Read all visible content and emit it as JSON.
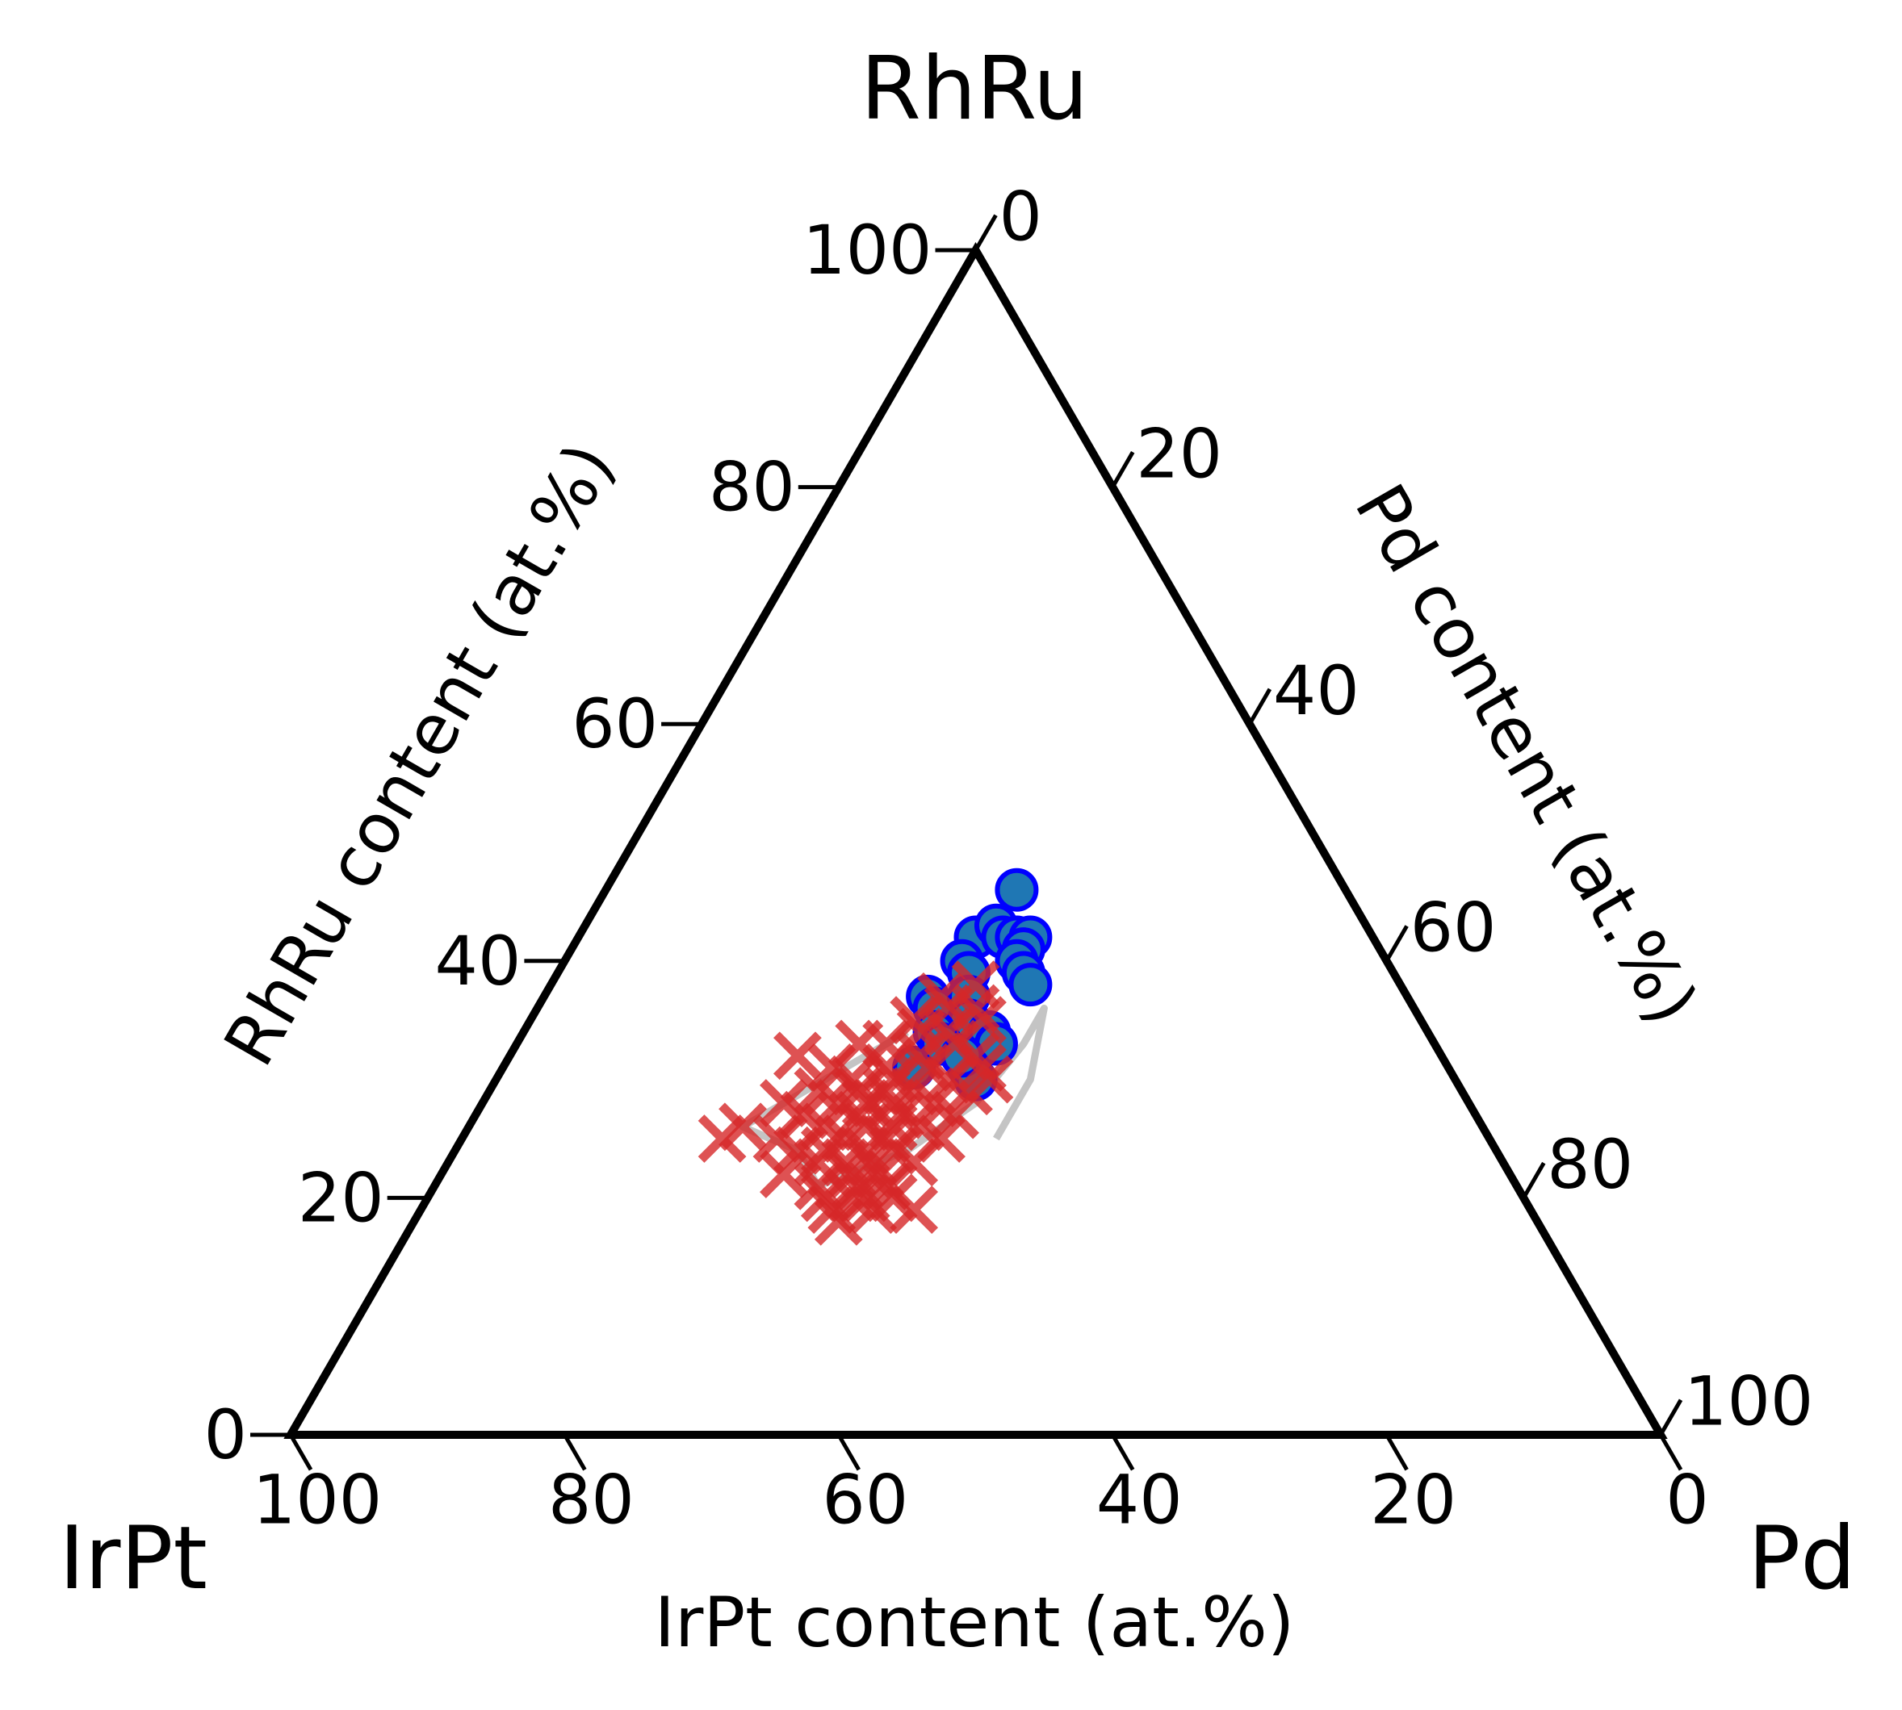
{
  "chart_data": {
    "type": "scatter",
    "subtype": "ternary",
    "corners": {
      "top": "RhRu",
      "left": "IrPt",
      "right": "Pd"
    },
    "axes": {
      "rhru": {
        "label": "RhRu content (at.%)",
        "side": "left",
        "ticks": [
          "0",
          "20",
          "40",
          "60",
          "80",
          "100"
        ]
      },
      "pd": {
        "label": "Pd content (at.%)",
        "side": "right",
        "ticks": [
          "0",
          "20",
          "40",
          "60",
          "80",
          "100"
        ]
      },
      "irpt": {
        "label": "IrPt content (at.%)",
        "side": "bottom",
        "ticks": [
          "100",
          "80",
          "60",
          "40",
          "20",
          "0"
        ]
      }
    },
    "range": [
      0,
      100
    ],
    "grid": false,
    "legend": "none",
    "colors": {
      "circle_fill": "#1f77b4",
      "circle_edge": "#0000ff",
      "cross": "#d62728",
      "trace": "#b0b0b0",
      "frame": "#000000"
    },
    "series": [
      {
        "marker": "circle",
        "points": [
          {
            "rhru": 46,
            "pd": 30
          },
          {
            "rhru": 42,
            "pd": 29
          },
          {
            "rhru": 43,
            "pd": 30
          },
          {
            "rhru": 42,
            "pd": 31
          },
          {
            "rhru": 42,
            "pd": 32
          },
          {
            "rhru": 42,
            "pd": 33
          },
          {
            "rhru": 41,
            "pd": 33
          },
          {
            "rhru": 40,
            "pd": 33
          },
          {
            "rhru": 40,
            "pd": 29
          },
          {
            "rhru": 39,
            "pd": 30
          },
          {
            "rhru": 39,
            "pd": 34
          },
          {
            "rhru": 38,
            "pd": 35
          },
          {
            "rhru": 37,
            "pd": 28
          },
          {
            "rhru": 36,
            "pd": 29
          },
          {
            "rhru": 37,
            "pd": 31
          },
          {
            "rhru": 35,
            "pd": 32
          },
          {
            "rhru": 34,
            "pd": 34
          },
          {
            "rhru": 33,
            "pd": 35
          },
          {
            "rhru": 34,
            "pd": 30
          },
          {
            "rhru": 31,
            "pd": 34
          },
          {
            "rhru": 30,
            "pd": 35
          },
          {
            "rhru": 31,
            "pd": 30
          },
          {
            "rhru": 33,
            "pd": 31
          },
          {
            "rhru": 32,
            "pd": 33
          }
        ]
      },
      {
        "marker": "cross",
        "points": [
          {
            "rhru": 38,
            "pd": 31
          },
          {
            "rhru": 37,
            "pd": 29
          },
          {
            "rhru": 36,
            "pd": 32
          },
          {
            "rhru": 36,
            "pd": 30
          },
          {
            "rhru": 35,
            "pd": 33
          },
          {
            "rhru": 35,
            "pd": 28
          },
          {
            "rhru": 34,
            "pd": 31
          },
          {
            "rhru": 34,
            "pd": 29
          },
          {
            "rhru": 33,
            "pd": 32
          },
          {
            "rhru": 33,
            "pd": 27
          },
          {
            "rhru": 32,
            "pd": 30
          },
          {
            "rhru": 32,
            "pd": 34
          },
          {
            "rhru": 32,
            "pd": 21
          },
          {
            "rhru": 31,
            "pd": 35
          },
          {
            "rhru": 31,
            "pd": 28
          },
          {
            "rhru": 31,
            "pd": 31
          },
          {
            "rhru": 30,
            "pd": 26
          },
          {
            "rhru": 30,
            "pd": 33
          },
          {
            "rhru": 30,
            "pd": 29
          },
          {
            "rhru": 29,
            "pd": 31
          },
          {
            "rhru": 29,
            "pd": 27
          },
          {
            "rhru": 29,
            "pd": 24
          },
          {
            "rhru": 28,
            "pd": 22
          },
          {
            "rhru": 28,
            "pd": 30
          },
          {
            "rhru": 28,
            "pd": 33
          },
          {
            "rhru": 28,
            "pd": 26
          },
          {
            "rhru": 27,
            "pd": 28
          },
          {
            "rhru": 27,
            "pd": 31
          },
          {
            "rhru": 27,
            "pd": 24
          },
          {
            "rhru": 26,
            "pd": 20
          },
          {
            "rhru": 26,
            "pd": 29
          },
          {
            "rhru": 26,
            "pd": 33
          },
          {
            "rhru": 26,
            "pd": 26
          },
          {
            "rhru": 25,
            "pd": 31
          },
          {
            "rhru": 25,
            "pd": 28
          },
          {
            "rhru": 25,
            "pd": 23
          },
          {
            "rhru": 25,
            "pd": 35
          },
          {
            "rhru": 25,
            "pd": 19
          },
          {
            "rhru": 24,
            "pd": 30
          },
          {
            "rhru": 24,
            "pd": 27
          },
          {
            "rhru": 24,
            "pd": 32
          },
          {
            "rhru": 24,
            "pd": 25
          },
          {
            "rhru": 23,
            "pd": 29
          },
          {
            "rhru": 23,
            "pd": 34
          },
          {
            "rhru": 23,
            "pd": 27
          },
          {
            "rhru": 22,
            "pd": 30
          },
          {
            "rhru": 22,
            "pd": 32
          },
          {
            "rhru": 22,
            "pd": 25
          },
          {
            "rhru": 21,
            "pd": 28
          },
          {
            "rhru": 21,
            "pd": 33
          },
          {
            "rhru": 21,
            "pd": 31
          },
          {
            "rhru": 20,
            "pd": 29
          },
          {
            "rhru": 20,
            "pd": 31
          },
          {
            "rhru": 20,
            "pd": 32
          },
          {
            "rhru": 20,
            "pd": 34
          },
          {
            "rhru": 19,
            "pd": 30
          },
          {
            "rhru": 19,
            "pd": 33
          },
          {
            "rhru": 19,
            "pd": 36
          },
          {
            "rhru": 18,
            "pd": 31
          },
          {
            "rhru": 30,
            "pd": 36
          },
          {
            "rhru": 29,
            "pd": 35
          },
          {
            "rhru": 27,
            "pd": 35
          },
          {
            "rhru": 23,
            "pd": 31
          },
          {
            "rhru": 26,
            "pd": 31
          },
          {
            "rhru": 28,
            "pd": 28
          },
          {
            "rhru": 31,
            "pd": 24
          },
          {
            "rhru": 33,
            "pd": 25
          },
          {
            "rhru": 29,
            "pd": 29
          }
        ]
      }
    ],
    "trace": [
      {
        "rhru": 34,
        "pd": 28
      },
      {
        "rhru": 28,
        "pd": 22
      },
      {
        "rhru": 30,
        "pd": 24
      },
      {
        "rhru": 26,
        "pd": 20
      },
      {
        "rhru": 24,
        "pd": 25
      },
      {
        "rhru": 21,
        "pd": 28
      },
      {
        "rhru": 24,
        "pd": 33
      },
      {
        "rhru": 28,
        "pd": 36
      },
      {
        "rhru": 33,
        "pd": 37
      },
      {
        "rhru": 36,
        "pd": 37
      },
      {
        "rhru": 33,
        "pd": 38
      },
      {
        "rhru": 30,
        "pd": 39
      },
      {
        "rhru": 27,
        "pd": 39
      },
      {
        "rhru": 25,
        "pd": 39
      }
    ]
  }
}
